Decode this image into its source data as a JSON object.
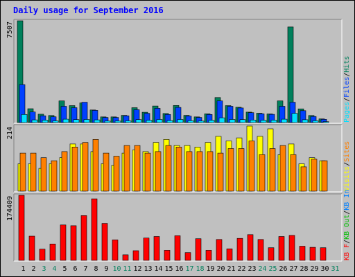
{
  "chart_data": {
    "type": "bar",
    "title": "Daily usage for September 2016",
    "categories": [
      "1",
      "2",
      "3",
      "4",
      "5",
      "6",
      "7",
      "8",
      "9",
      "10",
      "11",
      "12",
      "13",
      "14",
      "15",
      "16",
      "17",
      "18",
      "19",
      "20",
      "21",
      "22",
      "23",
      "24",
      "25",
      "26",
      "27",
      "28",
      "29",
      "30",
      "31"
    ],
    "weekend_days": [
      "3",
      "4",
      "10",
      "11",
      "17",
      "18",
      "24",
      "25",
      "31"
    ],
    "colors": {
      "hits": "#00805c",
      "files": "#0040ff",
      "pages": "#00e0ff",
      "visits": "#ffff00",
      "sites": "#ff8000",
      "kbin": "#0080ff",
      "kbout": "#00c000",
      "kbf": "#ff0000",
      "weekday_label": "#000000",
      "weekend_label": "#00805c"
    },
    "panels": [
      {
        "name": "hits-files-pages",
        "max_label": "7507",
        "ylim": [
          0,
          7507
        ],
        "legend": [
          {
            "text": "Pages",
            "color": "#00e0ff"
          },
          {
            "text": "/",
            "color": "#000000"
          },
          {
            "text": "Files",
            "color": "#0040ff"
          },
          {
            "text": "/",
            "color": "#000000"
          },
          {
            "text": "Hits",
            "color": "#00805c"
          }
        ],
        "series": [
          {
            "name": "Hits",
            "color": "#00805c",
            "values": [
              7507,
              1020,
              620,
              520,
              1600,
              1250,
              1450,
              930,
              420,
              420,
              530,
              1100,
              760,
              1220,
              670,
              1260,
              530,
              420,
              650,
              1850,
              1250,
              1130,
              770,
              690,
              640,
              1600,
              7050,
              1010,
              520,
              270,
              null
            ]
          },
          {
            "name": "Files",
            "color": "#0040ff",
            "values": [
              2800,
              780,
              500,
              430,
              1200,
              1100,
              1500,
              900,
              380,
              380,
              500,
              950,
              680,
              1050,
              600,
              1120,
              480,
              380,
              600,
              1600,
              1200,
              1080,
              730,
              650,
              610,
              1200,
              1500,
              880,
              450,
              240,
              null
            ]
          },
          {
            "name": "Pages",
            "color": "#00e0ff",
            "values": [
              600,
              200,
              180,
              130,
              250,
              220,
              230,
              200,
              110,
              110,
              130,
              220,
              170,
              230,
              150,
              230,
              140,
              110,
              170,
              350,
              230,
              220,
              190,
              170,
              180,
              250,
              680,
              210,
              140,
              70,
              null
            ]
          }
        ]
      },
      {
        "name": "visits-sites",
        "max_label": "214",
        "ylim": [
          0,
          214
        ],
        "legend": [
          {
            "text": "Visits",
            "color": "#ffff00"
          },
          {
            "text": "/",
            "color": "#000000"
          },
          {
            "text": "Sites",
            "color": "#ff8000"
          }
        ],
        "series": [
          {
            "name": "Visits",
            "color": "#ffff00",
            "values": [
              90,
              90,
              75,
              90,
              110,
              155,
              155,
              130,
              90,
              85,
              125,
              135,
              130,
              160,
              170,
              150,
              150,
              145,
              160,
              180,
              165,
              175,
              214,
              180,
              205,
              120,
              155,
              90,
              110,
              100,
              null
            ]
          },
          {
            "name": "Sites",
            "color": "#ff8000",
            "values": [
              125,
              125,
              110,
              100,
              130,
              145,
              160,
              170,
              125,
              115,
              150,
              150,
              125,
              130,
              150,
              145,
              130,
              130,
              130,
              125,
              140,
              140,
              165,
              120,
              140,
              150,
              120,
              80,
              105,
              100,
              null
            ]
          }
        ]
      },
      {
        "name": "kbytes",
        "max_label": "174409",
        "ylim": [
          0,
          174409
        ],
        "legend": [
          {
            "text": "KB F",
            "color": "#ff0000"
          },
          {
            "text": "/",
            "color": "#000000"
          },
          {
            "text": "KB Out",
            "color": "#00c000"
          },
          {
            "text": "/",
            "color": "#000000"
          },
          {
            "text": "KB In",
            "color": "#0080ff"
          }
        ],
        "series": [
          {
            "name": "KB F",
            "color": "#ff0000",
            "values": [
              174409,
              65000,
              30000,
              44000,
              95000,
              93000,
              120000,
              165000,
              99000,
              55000,
              15000,
              26000,
              60000,
              64000,
              27000,
              66000,
              21000,
              58000,
              27000,
              56000,
              31000,
              59000,
              69000,
              56000,
              34000,
              64000,
              67000,
              38000,
              35000,
              34000,
              null
            ]
          }
        ]
      }
    ]
  }
}
